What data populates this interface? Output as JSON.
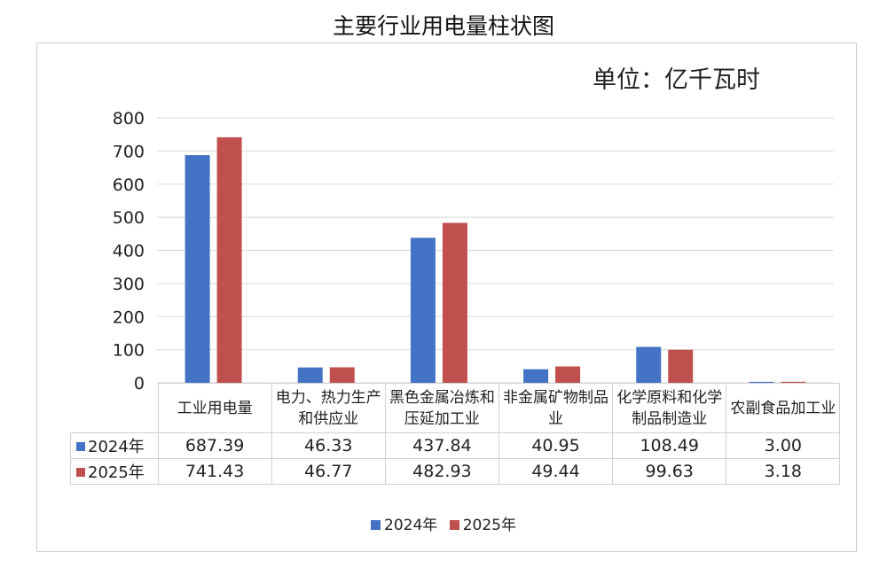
{
  "chart_data": {
    "type": "bar",
    "title": "主要行业用电量柱状图",
    "unit_label": "单位：亿千瓦时",
    "categories": [
      "工业用电量",
      "电力、热力生产和供应业",
      "黑色金属冶炼和压延加工业",
      "非金属矿物制品业",
      "化学原料和化学制品制造业",
      "农副食品加工业"
    ],
    "series": [
      {
        "name": "2024年",
        "color": "#4472C4",
        "values": [
          687.39,
          46.33,
          437.84,
          40.95,
          108.49,
          3.0
        ],
        "labels": [
          "687.39",
          "46.33",
          "437.84",
          "40.95",
          "108.49",
          "3.00"
        ]
      },
      {
        "name": "2025年",
        "color": "#C0504D",
        "values": [
          741.43,
          46.77,
          482.93,
          49.44,
          99.63,
          3.18
        ],
        "labels": [
          "741.43",
          "46.77",
          "482.93",
          "49.44",
          "99.63",
          "3.18"
        ]
      }
    ],
    "yticks": [
      "0",
      "100",
      "200",
      "300",
      "400",
      "500",
      "600",
      "700",
      "800"
    ],
    "ylim": [
      0,
      800
    ],
    "grid": true,
    "legend_position": "bottom"
  }
}
